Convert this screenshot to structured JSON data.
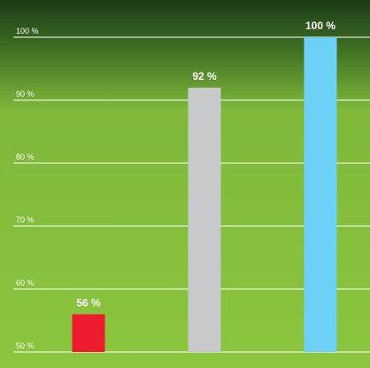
{
  "chart_data": {
    "type": "bar",
    "categories": [
      null,
      null,
      null
    ],
    "series": [
      {
        "values": [
          56,
          92,
          100
        ],
        "colors": [
          "#ed1c2e",
          "#c8c9cb",
          "#6dd0f7"
        ],
        "value_labels": [
          "56 %",
          "92 %",
          "100 %"
        ]
      }
    ],
    "ylim": [
      50,
      100
    ],
    "yticks": [
      {
        "value": 50,
        "label": "50 %"
      },
      {
        "value": 60,
        "label": "60 %"
      },
      {
        "value": 70,
        "label": "70 %"
      },
      {
        "value": 80,
        "label": "80 %"
      },
      {
        "value": 90,
        "label": "90 %"
      },
      {
        "value": 100,
        "label": "100 %"
      }
    ],
    "grid": true
  }
}
